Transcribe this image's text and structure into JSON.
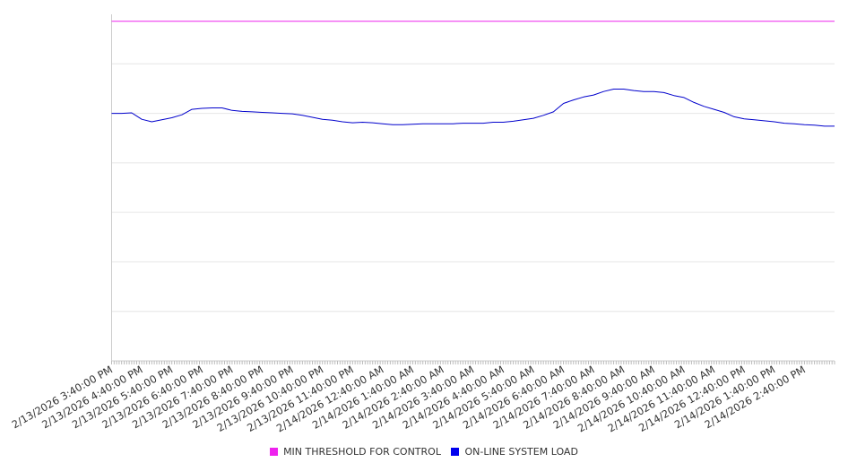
{
  "chart_data": {
    "type": "line",
    "x_tick_labels": [
      "2/13/2026 3:40:00 PM",
      "2/13/2026 4:40:00 PM",
      "2/13/2026 5:40:00 PM",
      "2/13/2026 6:40:00 PM",
      "2/13/2026 7:40:00 PM",
      "2/13/2026 8:40:00 PM",
      "2/13/2026 9:40:00 PM",
      "2/13/2026 10:40:00 PM",
      "2/13/2026 11:40:00 PM",
      "2/14/2026 12:40:00 AM",
      "2/14/2026 1:40:00 AM",
      "2/14/2026 2:40:00 AM",
      "2/14/2026 3:40:00 AM",
      "2/14/2026 4:40:00 AM",
      "2/14/2026 5:40:00 AM",
      "2/14/2026 6:40:00 AM",
      "2/14/2026 7:40:00 AM",
      "2/14/2026 8:40:00 AM",
      "2/14/2026 9:40:00 AM",
      "2/14/2026 10:40:00 AM",
      "2/14/2026 11:40:00 AM",
      "2/14/2026 12:40:00 PM",
      "2/14/2026 1:40:00 PM",
      "2/14/2026 2:40:00 PM"
    ],
    "x_range": [
      "2/13/2026 3:40:00 PM",
      "2/14/2026 3:40:00 PM"
    ],
    "y_range": [
      0,
      7
    ],
    "y_axis_labels_visible": false,
    "grid": "horizontal",
    "legend_position": "bottom-center",
    "series": [
      {
        "name": "MIN THRESHOLD FOR CONTROL",
        "color": "#ee22ee",
        "points": [
          {
            "x": "2/13/2026 3:40:00 PM",
            "y": 6.86
          },
          {
            "x": "2/14/2026 3:40:00 PM",
            "y": 6.86
          }
        ]
      },
      {
        "name": "ON-LINE SYSTEM LOAD",
        "color": "#0000cc",
        "points": [
          {
            "x": "2/13/2026 3:40:00 PM",
            "y": 5.0
          },
          {
            "x": "2/13/2026 4:00:00 PM",
            "y": 5.0
          },
          {
            "x": "2/13/2026 4:20:00 PM",
            "y": 5.01
          },
          {
            "x": "2/13/2026 4:40:00 PM",
            "y": 4.88
          },
          {
            "x": "2/13/2026 5:00:00 PM",
            "y": 4.83
          },
          {
            "x": "2/13/2026 5:20:00 PM",
            "y": 4.87
          },
          {
            "x": "2/13/2026 5:40:00 PM",
            "y": 4.91
          },
          {
            "x": "2/13/2026 6:00:00 PM",
            "y": 4.97
          },
          {
            "x": "2/13/2026 6:20:00 PM",
            "y": 5.08
          },
          {
            "x": "2/13/2026 6:40:00 PM",
            "y": 5.1
          },
          {
            "x": "2/13/2026 7:00:00 PM",
            "y": 5.11
          },
          {
            "x": "2/13/2026 7:20:00 PM",
            "y": 5.11
          },
          {
            "x": "2/13/2026 7:40:00 PM",
            "y": 5.06
          },
          {
            "x": "2/13/2026 8:00:00 PM",
            "y": 5.04
          },
          {
            "x": "2/13/2026 8:20:00 PM",
            "y": 5.03
          },
          {
            "x": "2/13/2026 8:40:00 PM",
            "y": 5.02
          },
          {
            "x": "2/13/2026 9:00:00 PM",
            "y": 5.01
          },
          {
            "x": "2/13/2026 9:20:00 PM",
            "y": 5.0
          },
          {
            "x": "2/13/2026 9:40:00 PM",
            "y": 4.99
          },
          {
            "x": "2/13/2026 10:00:00 PM",
            "y": 4.96
          },
          {
            "x": "2/13/2026 10:20:00 PM",
            "y": 4.92
          },
          {
            "x": "2/13/2026 10:40:00 PM",
            "y": 4.88
          },
          {
            "x": "2/13/2026 11:00:00 PM",
            "y": 4.86
          },
          {
            "x": "2/13/2026 11:20:00 PM",
            "y": 4.83
          },
          {
            "x": "2/13/2026 11:40:00 PM",
            "y": 4.81
          },
          {
            "x": "2/14/2026 12:00:00 AM",
            "y": 4.82
          },
          {
            "x": "2/14/2026 12:20:00 AM",
            "y": 4.81
          },
          {
            "x": "2/14/2026 12:40:00 AM",
            "y": 4.79
          },
          {
            "x": "2/14/2026 1:00:00 AM",
            "y": 4.77
          },
          {
            "x": "2/14/2026 1:20:00 AM",
            "y": 4.77
          },
          {
            "x": "2/14/2026 1:40:00 AM",
            "y": 4.78
          },
          {
            "x": "2/14/2026 2:00:00 AM",
            "y": 4.79
          },
          {
            "x": "2/14/2026 2:20:00 AM",
            "y": 4.79
          },
          {
            "x": "2/14/2026 2:40:00 AM",
            "y": 4.79
          },
          {
            "x": "2/14/2026 3:00:00 AM",
            "y": 4.79
          },
          {
            "x": "2/14/2026 3:20:00 AM",
            "y": 4.8
          },
          {
            "x": "2/14/2026 3:40:00 AM",
            "y": 4.8
          },
          {
            "x": "2/14/2026 4:00:00 AM",
            "y": 4.8
          },
          {
            "x": "2/14/2026 4:20:00 AM",
            "y": 4.82
          },
          {
            "x": "2/14/2026 4:40:00 AM",
            "y": 4.82
          },
          {
            "x": "2/14/2026 5:00:00 AM",
            "y": 4.84
          },
          {
            "x": "2/14/2026 5:20:00 AM",
            "y": 4.87
          },
          {
            "x": "2/14/2026 5:40:00 AM",
            "y": 4.9
          },
          {
            "x": "2/14/2026 6:00:00 AM",
            "y": 4.96
          },
          {
            "x": "2/14/2026 6:20:00 AM",
            "y": 5.03
          },
          {
            "x": "2/14/2026 6:40:00 AM",
            "y": 5.2
          },
          {
            "x": "2/14/2026 7:00:00 AM",
            "y": 5.27
          },
          {
            "x": "2/14/2026 7:20:00 AM",
            "y": 5.33
          },
          {
            "x": "2/14/2026 7:40:00 AM",
            "y": 5.37
          },
          {
            "x": "2/14/2026 8:00:00 AM",
            "y": 5.44
          },
          {
            "x": "2/14/2026 8:20:00 AM",
            "y": 5.49
          },
          {
            "x": "2/14/2026 8:40:00 AM",
            "y": 5.49
          },
          {
            "x": "2/14/2026 9:00:00 AM",
            "y": 5.46
          },
          {
            "x": "2/14/2026 9:20:00 AM",
            "y": 5.44
          },
          {
            "x": "2/14/2026 9:40:00 AM",
            "y": 5.44
          },
          {
            "x": "2/14/2026 10:00:00 AM",
            "y": 5.42
          },
          {
            "x": "2/14/2026 10:20:00 AM",
            "y": 5.36
          },
          {
            "x": "2/14/2026 10:40:00 AM",
            "y": 5.32
          },
          {
            "x": "2/14/2026 11:00:00 AM",
            "y": 5.22
          },
          {
            "x": "2/14/2026 11:20:00 AM",
            "y": 5.14
          },
          {
            "x": "2/14/2026 11:40:00 AM",
            "y": 5.08
          },
          {
            "x": "2/14/2026 12:00:00 PM",
            "y": 5.02
          },
          {
            "x": "2/14/2026 12:20:00 PM",
            "y": 4.93
          },
          {
            "x": "2/14/2026 12:40:00 PM",
            "y": 4.89
          },
          {
            "x": "2/14/2026 1:00:00 PM",
            "y": 4.87
          },
          {
            "x": "2/14/2026 1:20:00 PM",
            "y": 4.85
          },
          {
            "x": "2/14/2026 1:40:00 PM",
            "y": 4.83
          },
          {
            "x": "2/14/2026 2:00:00 PM",
            "y": 4.8
          },
          {
            "x": "2/14/2026 2:20:00 PM",
            "y": 4.79
          },
          {
            "x": "2/14/2026 2:40:00 PM",
            "y": 4.77
          },
          {
            "x": "2/14/2026 3:00:00 PM",
            "y": 4.76
          },
          {
            "x": "2/14/2026 3:20:00 PM",
            "y": 4.74
          },
          {
            "x": "2/14/2026 3:40:00 PM",
            "y": 4.74
          }
        ]
      }
    ]
  },
  "legend": {
    "items": [
      {
        "label": "MIN THRESHOLD FOR CONTROL",
        "color": "#ee22ee"
      },
      {
        "label": "ON-LINE SYSTEM LOAD",
        "color": "#0000ee"
      }
    ]
  }
}
